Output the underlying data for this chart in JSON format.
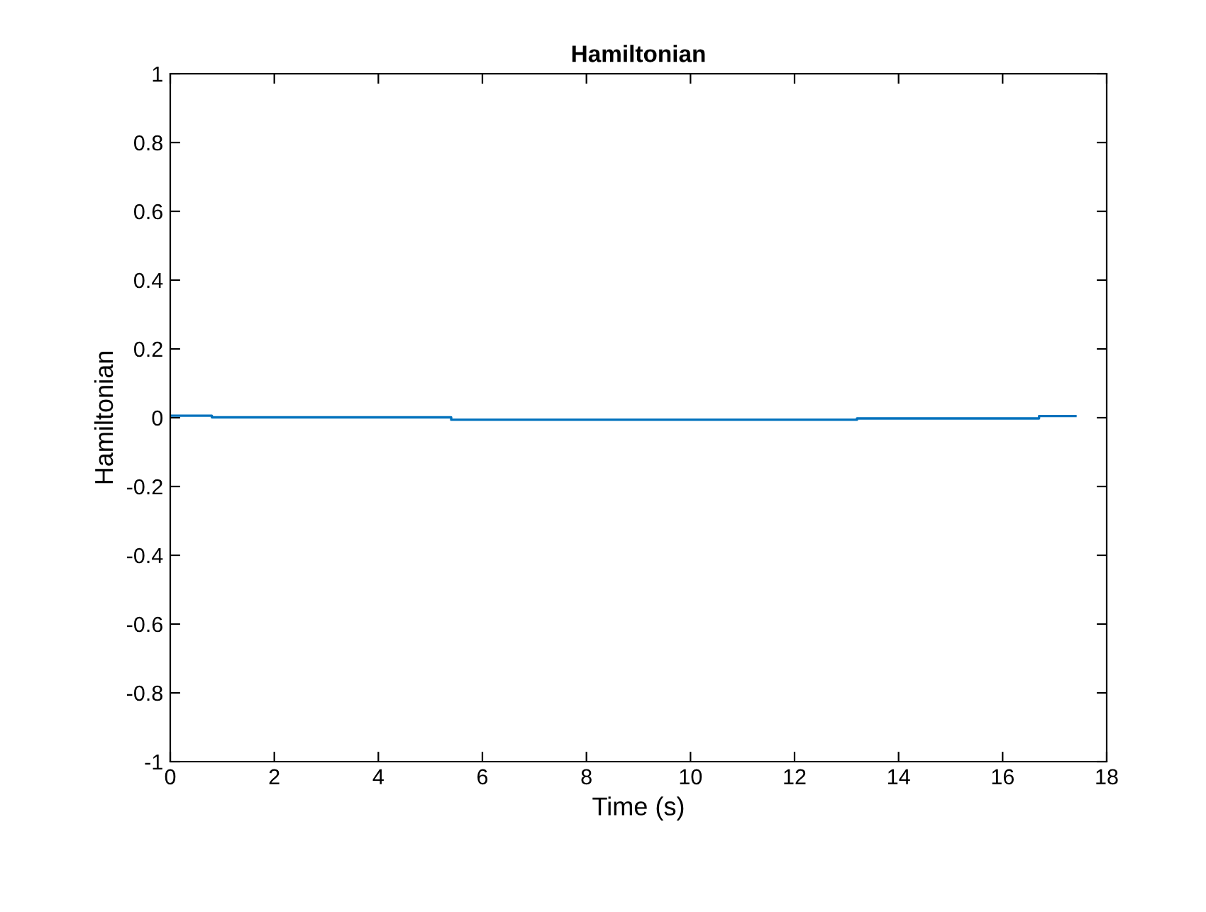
{
  "chart_data": {
    "type": "step",
    "title": "Hamiltonian",
    "xlabel": "Time (s)",
    "ylabel": "Hamiltonian",
    "x": [
      0,
      0.8,
      5.4,
      13.2,
      16.7,
      17.4
    ],
    "series": [
      {
        "color": "#0072bd",
        "values": [
          0.006,
          0.001,
          -0.006,
          -0.002,
          0.005,
          0.005
        ]
      }
    ],
    "xlim": [
      0,
      18
    ],
    "xticks": [
      0,
      2,
      4,
      6,
      8,
      10,
      12,
      14,
      16,
      18
    ],
    "ylim": [
      -1,
      1
    ],
    "yticks": [
      -1,
      -0.8,
      -0.6,
      -0.4,
      -0.2,
      0,
      0.2,
      0.4,
      0.6,
      0.8,
      1
    ],
    "grid": false
  }
}
